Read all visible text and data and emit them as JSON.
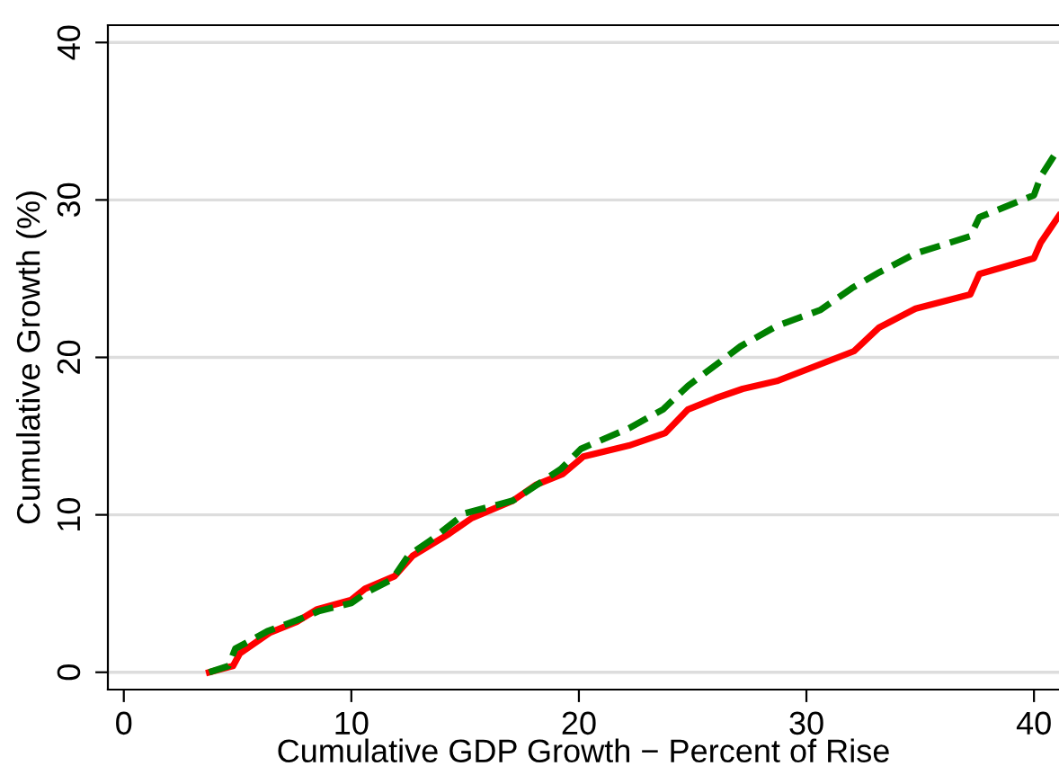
{
  "chart_data": {
    "type": "line",
    "xlabel": "Cumulative GDP Growth − Percent of Rise",
    "ylabel": "Cumulative Growth (%)",
    "xlim": [
      -0.7,
      41.1
    ],
    "ylim": [
      -1.1,
      41.1
    ],
    "xticks": [
      0,
      10,
      20,
      30,
      40
    ],
    "yticks": [
      0,
      10,
      20,
      30,
      40
    ],
    "grid": "y",
    "series": [
      {
        "color": "#ff0000",
        "line_style": "solid",
        "x": [
          3.75,
          4.8,
          5.1,
          6.0,
          6.4,
          7.6,
          8.5,
          10.0,
          10.6,
          11.9,
          12.7,
          14.3,
          15.3,
          17.1,
          18.1,
          19.3,
          20.2,
          22.2,
          23.8,
          24.8,
          26.0,
          27.2,
          28.7,
          32.1,
          33.2,
          34.8,
          37.2,
          37.6,
          40.0,
          40.3,
          41.1
        ],
        "values": [
          0,
          0.4,
          1.2,
          2.1,
          2.5,
          3.2,
          4.0,
          4.6,
          5.3,
          6.1,
          7.4,
          8.8,
          9.8,
          10.9,
          11.9,
          12.6,
          13.7,
          14.4,
          15.2,
          16.7,
          17.4,
          18.0,
          18.5,
          20.4,
          21.9,
          23.1,
          24.0,
          25.3,
          26.3,
          27.3,
          29.0
        ]
      },
      {
        "color": "#008000",
        "line_style": "dashed",
        "x": [
          3.75,
          4.6,
          4.9,
          6.3,
          7.6,
          8.6,
          10.0,
          10.7,
          11.8,
          12.5,
          13.5,
          15.0,
          17.1,
          19.2,
          20.1,
          22.2,
          23.7,
          24.8,
          27.1,
          28.7,
          30.6,
          32.0,
          33.2,
          34.8,
          37.2,
          37.6,
          40.0,
          40.3,
          41.1
        ],
        "values": [
          0,
          0.4,
          1.5,
          2.6,
          3.3,
          3.9,
          4.4,
          5.1,
          5.9,
          7.4,
          8.4,
          10.1,
          10.9,
          12.9,
          14.2,
          15.5,
          16.7,
          18.2,
          20.7,
          22.0,
          23.0,
          24.4,
          25.4,
          26.6,
          27.7,
          28.9,
          30.3,
          31.5,
          33.3
        ]
      }
    ]
  }
}
